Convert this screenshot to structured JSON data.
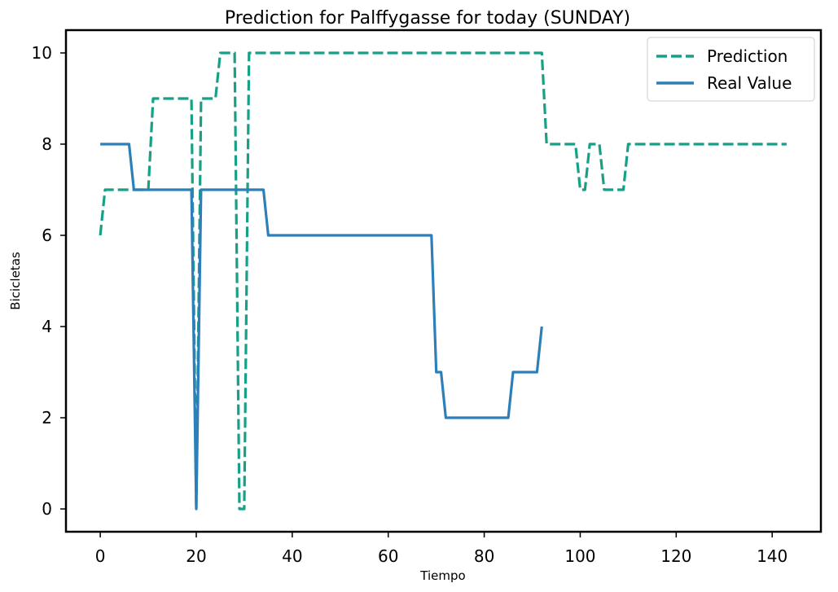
{
  "chart_data": {
    "type": "line",
    "title": "Prediction for Palffygasse for today (SUNDAY)",
    "xlabel": "Tiempo",
    "ylabel": "Bicicletas",
    "xlim": [
      -7.15,
      150.15
    ],
    "ylim": [
      -0.5,
      10.5
    ],
    "xticks": [
      0,
      20,
      40,
      60,
      80,
      100,
      120,
      140
    ],
    "yticks": [
      0,
      2,
      4,
      6,
      8,
      10
    ],
    "grid": false,
    "legend_position": "top-right",
    "series": [
      {
        "name": "Prediction",
        "color": "#17a086",
        "style": "dashed",
        "points": [
          [
            0,
            6
          ],
          [
            1,
            7
          ],
          [
            9,
            7
          ],
          [
            10,
            7
          ],
          [
            11,
            9
          ],
          [
            18,
            9
          ],
          [
            19,
            9
          ],
          [
            20,
            0
          ],
          [
            21,
            9
          ],
          [
            24,
            9
          ],
          [
            25,
            10
          ],
          [
            28,
            10
          ],
          [
            29,
            0
          ],
          [
            30,
            0
          ],
          [
            31,
            10
          ],
          [
            92,
            10
          ],
          [
            93,
            8
          ],
          [
            99,
            8
          ],
          [
            100,
            7
          ],
          [
            101,
            7
          ],
          [
            102,
            8
          ],
          [
            104,
            8
          ],
          [
            105,
            7
          ],
          [
            109,
            7
          ],
          [
            110,
            8
          ],
          [
            143,
            8
          ]
        ]
      },
      {
        "name": "Real Value",
        "color": "#2c7fb8",
        "style": "solid",
        "points": [
          [
            0,
            8
          ],
          [
            6,
            8
          ],
          [
            7,
            7
          ],
          [
            19,
            7
          ],
          [
            20,
            0
          ],
          [
            21,
            7
          ],
          [
            34,
            7
          ],
          [
            35,
            6
          ],
          [
            69,
            6
          ],
          [
            70,
            3
          ],
          [
            71,
            3
          ],
          [
            72,
            2
          ],
          [
            85,
            2
          ],
          [
            86,
            3
          ],
          [
            91,
            3
          ],
          [
            92,
            4
          ]
        ]
      }
    ]
  }
}
